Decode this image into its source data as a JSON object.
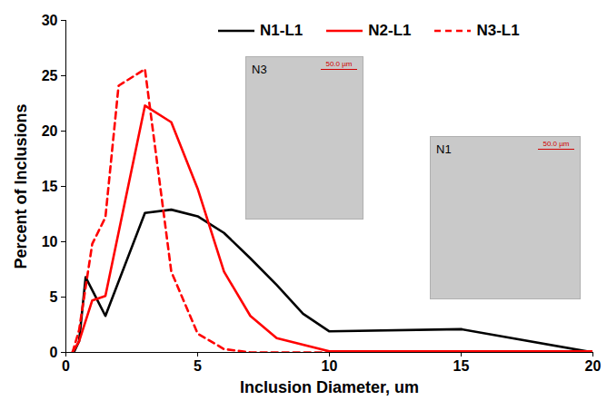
{
  "chart_data": {
    "type": "line",
    "xlabel": "Inclusion Diameter, um",
    "ylabel": "Percent of Inclusions",
    "xlim": [
      0,
      20
    ],
    "xticks": [
      0,
      5,
      10,
      15,
      20
    ],
    "ylim": [
      0,
      30
    ],
    "yticks": [
      0,
      5,
      10,
      15,
      20,
      25,
      30
    ],
    "legend": "top",
    "series": [
      {
        "name": "N1-L1",
        "color": "#000000",
        "line_style": "solid",
        "x": [
          0.3,
          0.5,
          0.75,
          1.5,
          3,
          4,
          5,
          6,
          7,
          8,
          9,
          10,
          15,
          20
        ],
        "values": [
          0,
          1,
          6.8,
          3.3,
          12.6,
          12.9,
          12.3,
          10.8,
          8.5,
          6.1,
          3.5,
          1.9,
          2.1,
          0
        ]
      },
      {
        "name": "N2-L1",
        "color": "#ff0000",
        "line_style": "solid",
        "x": [
          0.25,
          0.5,
          1,
          1.5,
          3,
          4,
          5,
          6,
          7,
          8,
          10,
          15,
          20
        ],
        "values": [
          0,
          1,
          4.7,
          5.1,
          22.3,
          20.8,
          14.8,
          7.3,
          3.3,
          1.3,
          0.1,
          0.1,
          0.1
        ]
      },
      {
        "name": "N3-L1",
        "color": "#ff0000",
        "line_style": "dashed",
        "x": [
          0.25,
          0.5,
          1,
          1.5,
          2,
          3,
          4,
          5,
          6,
          7,
          10,
          15,
          20
        ],
        "values": [
          0,
          2,
          9.8,
          12.2,
          24.1,
          25.6,
          7.3,
          1.7,
          0.3,
          0,
          0,
          0,
          0
        ]
      }
    ],
    "insets": [
      {
        "label": "N3",
        "scale_bar": "50.0 µm"
      },
      {
        "label": "N1",
        "scale_bar": "50.0 µm"
      }
    ]
  }
}
